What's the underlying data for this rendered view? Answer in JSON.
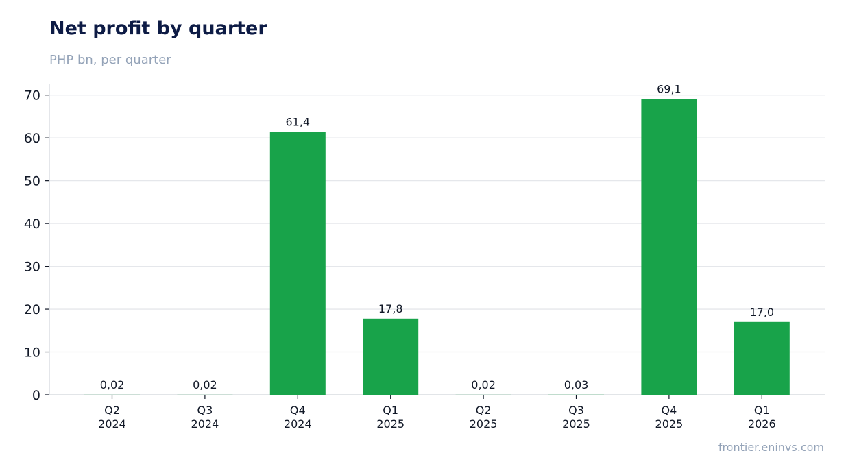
{
  "chart_data": {
    "type": "bar",
    "title": "Net profit by quarter",
    "subtitle": "PHP bn, per quarter",
    "categories": [
      [
        "Q2",
        "2024"
      ],
      [
        "Q3",
        "2024"
      ],
      [
        "Q4",
        "2024"
      ],
      [
        "Q1",
        "2025"
      ],
      [
        "Q2",
        "2025"
      ],
      [
        "Q3",
        "2025"
      ],
      [
        "Q4",
        "2025"
      ],
      [
        "Q1",
        "2026"
      ]
    ],
    "values": [
      0.02,
      0.02,
      61.4,
      17.8,
      0.02,
      0.03,
      69.1,
      17.0
    ],
    "value_labels": [
      "0,02",
      "0,02",
      "61,4",
      "17,8",
      "0,02",
      "0,03",
      "69,1",
      "17,0"
    ],
    "ylim": [
      0,
      72.5
    ],
    "yticks": [
      0,
      10,
      20,
      30,
      40,
      50,
      60,
      70
    ],
    "grid": true,
    "bar_color": "#18a34a",
    "source": "frontier.eninvs.com"
  }
}
